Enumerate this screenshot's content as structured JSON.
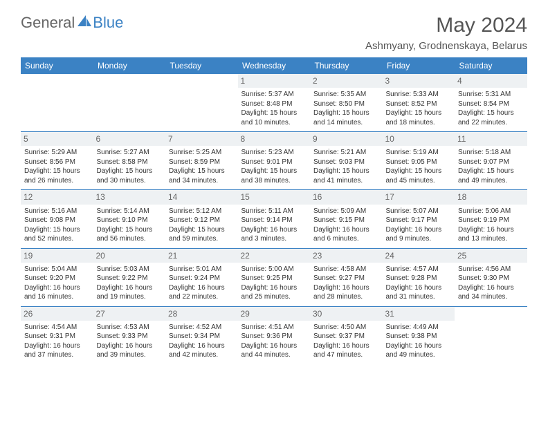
{
  "logo": {
    "text1": "General",
    "text2": "Blue"
  },
  "title": "May 2024",
  "location": "Ashmyany, Grodnenskaya, Belarus",
  "colors": {
    "header_bg": "#3b82c4",
    "header_text": "#ffffff",
    "border": "#3b82c4",
    "daynum_bg": "#eef1f3"
  },
  "weekdays": [
    "Sunday",
    "Monday",
    "Tuesday",
    "Wednesday",
    "Thursday",
    "Friday",
    "Saturday"
  ],
  "weeks": [
    [
      null,
      null,
      null,
      {
        "d": "1",
        "sr": "Sunrise: 5:37 AM",
        "ss": "Sunset: 8:48 PM",
        "dl1": "Daylight: 15 hours",
        "dl2": "and 10 minutes."
      },
      {
        "d": "2",
        "sr": "Sunrise: 5:35 AM",
        "ss": "Sunset: 8:50 PM",
        "dl1": "Daylight: 15 hours",
        "dl2": "and 14 minutes."
      },
      {
        "d": "3",
        "sr": "Sunrise: 5:33 AM",
        "ss": "Sunset: 8:52 PM",
        "dl1": "Daylight: 15 hours",
        "dl2": "and 18 minutes."
      },
      {
        "d": "4",
        "sr": "Sunrise: 5:31 AM",
        "ss": "Sunset: 8:54 PM",
        "dl1": "Daylight: 15 hours",
        "dl2": "and 22 minutes."
      }
    ],
    [
      {
        "d": "5",
        "sr": "Sunrise: 5:29 AM",
        "ss": "Sunset: 8:56 PM",
        "dl1": "Daylight: 15 hours",
        "dl2": "and 26 minutes."
      },
      {
        "d": "6",
        "sr": "Sunrise: 5:27 AM",
        "ss": "Sunset: 8:58 PM",
        "dl1": "Daylight: 15 hours",
        "dl2": "and 30 minutes."
      },
      {
        "d": "7",
        "sr": "Sunrise: 5:25 AM",
        "ss": "Sunset: 8:59 PM",
        "dl1": "Daylight: 15 hours",
        "dl2": "and 34 minutes."
      },
      {
        "d": "8",
        "sr": "Sunrise: 5:23 AM",
        "ss": "Sunset: 9:01 PM",
        "dl1": "Daylight: 15 hours",
        "dl2": "and 38 minutes."
      },
      {
        "d": "9",
        "sr": "Sunrise: 5:21 AM",
        "ss": "Sunset: 9:03 PM",
        "dl1": "Daylight: 15 hours",
        "dl2": "and 41 minutes."
      },
      {
        "d": "10",
        "sr": "Sunrise: 5:19 AM",
        "ss": "Sunset: 9:05 PM",
        "dl1": "Daylight: 15 hours",
        "dl2": "and 45 minutes."
      },
      {
        "d": "11",
        "sr": "Sunrise: 5:18 AM",
        "ss": "Sunset: 9:07 PM",
        "dl1": "Daylight: 15 hours",
        "dl2": "and 49 minutes."
      }
    ],
    [
      {
        "d": "12",
        "sr": "Sunrise: 5:16 AM",
        "ss": "Sunset: 9:08 PM",
        "dl1": "Daylight: 15 hours",
        "dl2": "and 52 minutes."
      },
      {
        "d": "13",
        "sr": "Sunrise: 5:14 AM",
        "ss": "Sunset: 9:10 PM",
        "dl1": "Daylight: 15 hours",
        "dl2": "and 56 minutes."
      },
      {
        "d": "14",
        "sr": "Sunrise: 5:12 AM",
        "ss": "Sunset: 9:12 PM",
        "dl1": "Daylight: 15 hours",
        "dl2": "and 59 minutes."
      },
      {
        "d": "15",
        "sr": "Sunrise: 5:11 AM",
        "ss": "Sunset: 9:14 PM",
        "dl1": "Daylight: 16 hours",
        "dl2": "and 3 minutes."
      },
      {
        "d": "16",
        "sr": "Sunrise: 5:09 AM",
        "ss": "Sunset: 9:15 PM",
        "dl1": "Daylight: 16 hours",
        "dl2": "and 6 minutes."
      },
      {
        "d": "17",
        "sr": "Sunrise: 5:07 AM",
        "ss": "Sunset: 9:17 PM",
        "dl1": "Daylight: 16 hours",
        "dl2": "and 9 minutes."
      },
      {
        "d": "18",
        "sr": "Sunrise: 5:06 AM",
        "ss": "Sunset: 9:19 PM",
        "dl1": "Daylight: 16 hours",
        "dl2": "and 13 minutes."
      }
    ],
    [
      {
        "d": "19",
        "sr": "Sunrise: 5:04 AM",
        "ss": "Sunset: 9:20 PM",
        "dl1": "Daylight: 16 hours",
        "dl2": "and 16 minutes."
      },
      {
        "d": "20",
        "sr": "Sunrise: 5:03 AM",
        "ss": "Sunset: 9:22 PM",
        "dl1": "Daylight: 16 hours",
        "dl2": "and 19 minutes."
      },
      {
        "d": "21",
        "sr": "Sunrise: 5:01 AM",
        "ss": "Sunset: 9:24 PM",
        "dl1": "Daylight: 16 hours",
        "dl2": "and 22 minutes."
      },
      {
        "d": "22",
        "sr": "Sunrise: 5:00 AM",
        "ss": "Sunset: 9:25 PM",
        "dl1": "Daylight: 16 hours",
        "dl2": "and 25 minutes."
      },
      {
        "d": "23",
        "sr": "Sunrise: 4:58 AM",
        "ss": "Sunset: 9:27 PM",
        "dl1": "Daylight: 16 hours",
        "dl2": "and 28 minutes."
      },
      {
        "d": "24",
        "sr": "Sunrise: 4:57 AM",
        "ss": "Sunset: 9:28 PM",
        "dl1": "Daylight: 16 hours",
        "dl2": "and 31 minutes."
      },
      {
        "d": "25",
        "sr": "Sunrise: 4:56 AM",
        "ss": "Sunset: 9:30 PM",
        "dl1": "Daylight: 16 hours",
        "dl2": "and 34 minutes."
      }
    ],
    [
      {
        "d": "26",
        "sr": "Sunrise: 4:54 AM",
        "ss": "Sunset: 9:31 PM",
        "dl1": "Daylight: 16 hours",
        "dl2": "and 37 minutes."
      },
      {
        "d": "27",
        "sr": "Sunrise: 4:53 AM",
        "ss": "Sunset: 9:33 PM",
        "dl1": "Daylight: 16 hours",
        "dl2": "and 39 minutes."
      },
      {
        "d": "28",
        "sr": "Sunrise: 4:52 AM",
        "ss": "Sunset: 9:34 PM",
        "dl1": "Daylight: 16 hours",
        "dl2": "and 42 minutes."
      },
      {
        "d": "29",
        "sr": "Sunrise: 4:51 AM",
        "ss": "Sunset: 9:36 PM",
        "dl1": "Daylight: 16 hours",
        "dl2": "and 44 minutes."
      },
      {
        "d": "30",
        "sr": "Sunrise: 4:50 AM",
        "ss": "Sunset: 9:37 PM",
        "dl1": "Daylight: 16 hours",
        "dl2": "and 47 minutes."
      },
      {
        "d": "31",
        "sr": "Sunrise: 4:49 AM",
        "ss": "Sunset: 9:38 PM",
        "dl1": "Daylight: 16 hours",
        "dl2": "and 49 minutes."
      },
      null
    ]
  ]
}
